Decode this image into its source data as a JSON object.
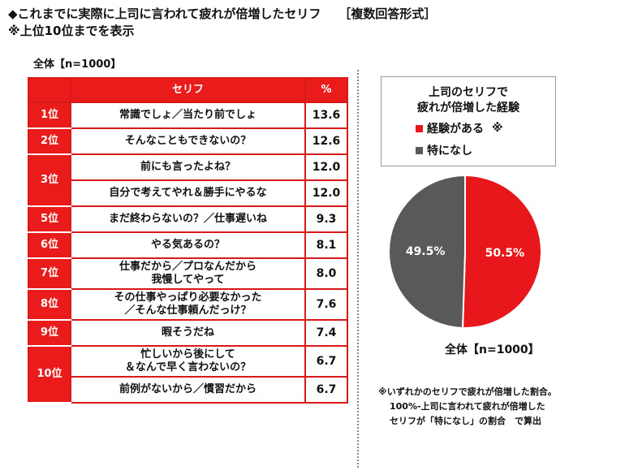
{
  "title_line1": "◆これまでに実際に上司に言われて疲れが倍増したセリフ",
  "title_line1_suffix": "［複数回答形式］",
  "title_line2": "※上位10位までを表示",
  "base_left": "全体【n=1000】",
  "table": {
    "header_phrase": "セリフ",
    "header_pct": "%",
    "groups": [
      {
        "rank": "1位",
        "items": [
          {
            "lines": [
              "常識でしょ／当たり前でしょ"
            ],
            "pct": "13.6"
          }
        ]
      },
      {
        "rank": "2位",
        "items": [
          {
            "lines": [
              "そんなこともできないの？"
            ],
            "pct": "12.6"
          }
        ]
      },
      {
        "rank": "3位",
        "items": [
          {
            "lines": [
              "前にも言ったよね？"
            ],
            "pct": "12.0"
          },
          {
            "lines": [
              "自分で考えてやれ＆勝手にやるな"
            ],
            "pct": "12.0"
          }
        ]
      },
      {
        "rank": "5位",
        "items": [
          {
            "lines": [
              "まだ終わらないの？／仕事遅いね"
            ],
            "pct": "9.3"
          }
        ]
      },
      {
        "rank": "6位",
        "items": [
          {
            "lines": [
              "やる気あるの？"
            ],
            "pct": "8.1"
          }
        ]
      },
      {
        "rank": "7位",
        "items": [
          {
            "lines": [
              "仕事だから／プロなんだから",
              "我慢してやって"
            ],
            "pct": "8.0"
          }
        ]
      },
      {
        "rank": "8位",
        "items": [
          {
            "lines": [
              "その仕事やっぱり必要なかった",
              "／そんな仕事頼んだっけ？"
            ],
            "pct": "7.6"
          }
        ]
      },
      {
        "rank": "9位",
        "items": [
          {
            "lines": [
              "暇そうだね"
            ],
            "pct": "7.4"
          }
        ]
      },
      {
        "rank": "10位",
        "items": [
          {
            "lines": [
              "忙しいから後にして",
              "＆なんで早く言わないの？"
            ],
            "pct": "6.7"
          },
          {
            "lines": [
              "前例がないから／慣習だから"
            ],
            "pct": "6.7"
          }
        ]
      }
    ]
  },
  "chart_data": {
    "type": "pie",
    "title": "上司のセリフで\n疲れが倍増した経験",
    "slices": [
      {
        "name": "経験がある",
        "value": 50.5,
        "label": "50.5%",
        "color": "#e8171b",
        "legend_mark": "※"
      },
      {
        "name": "特になし",
        "value": 49.5,
        "label": "49.5%",
        "color": "#595959"
      }
    ],
    "start_angle_deg": 0,
    "direction": "clockwise",
    "legend_position": "top"
  },
  "base_right": "全体【n=1000】",
  "note_lines": [
    "※いずれかのセリフで疲れが倍増した割合。",
    "100%-上司に言われて疲れが倍増した",
    "セリフが「特になし」の割合　で算出"
  ]
}
